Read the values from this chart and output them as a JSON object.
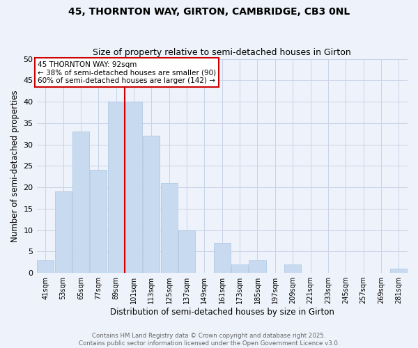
{
  "title_line1": "45, THORNTON WAY, GIRTON, CAMBRIDGE, CB3 0NL",
  "title_line2": "Size of property relative to semi-detached houses in Girton",
  "xlabel": "Distribution of semi-detached houses by size in Girton",
  "ylabel": "Number of semi-detached properties",
  "categories": [
    "41sqm",
    "53sqm",
    "65sqm",
    "77sqm",
    "89sqm",
    "101sqm",
    "113sqm",
    "125sqm",
    "137sqm",
    "149sqm",
    "161sqm",
    "173sqm",
    "185sqm",
    "197sqm",
    "209sqm",
    "221sqm",
    "233sqm",
    "245sqm",
    "257sqm",
    "269sqm",
    "281sqm"
  ],
  "values": [
    3,
    19,
    33,
    24,
    40,
    40,
    32,
    21,
    10,
    0,
    7,
    2,
    3,
    0,
    2,
    0,
    0,
    0,
    0,
    0,
    1
  ],
  "bar_color": "#c8daf0",
  "bar_edge_color": "#a8c4e0",
  "grid_color": "#c8d4e8",
  "bg_color": "#eef2fa",
  "vline_x": 4.5,
  "vline_color": "#cc0000",
  "annotation_title": "45 THORNTON WAY: 92sqm",
  "annotation_line2": "← 38% of semi-detached houses are smaller (90)",
  "annotation_line3": "60% of semi-detached houses are larger (142) →",
  "annotation_box_color": "#cc0000",
  "ylim": [
    0,
    50
  ],
  "yticks": [
    0,
    5,
    10,
    15,
    20,
    25,
    30,
    35,
    40,
    45,
    50
  ],
  "footer_line1": "Contains HM Land Registry data © Crown copyright and database right 2025.",
  "footer_line2": "Contains public sector information licensed under the Open Government Licence v3.0."
}
